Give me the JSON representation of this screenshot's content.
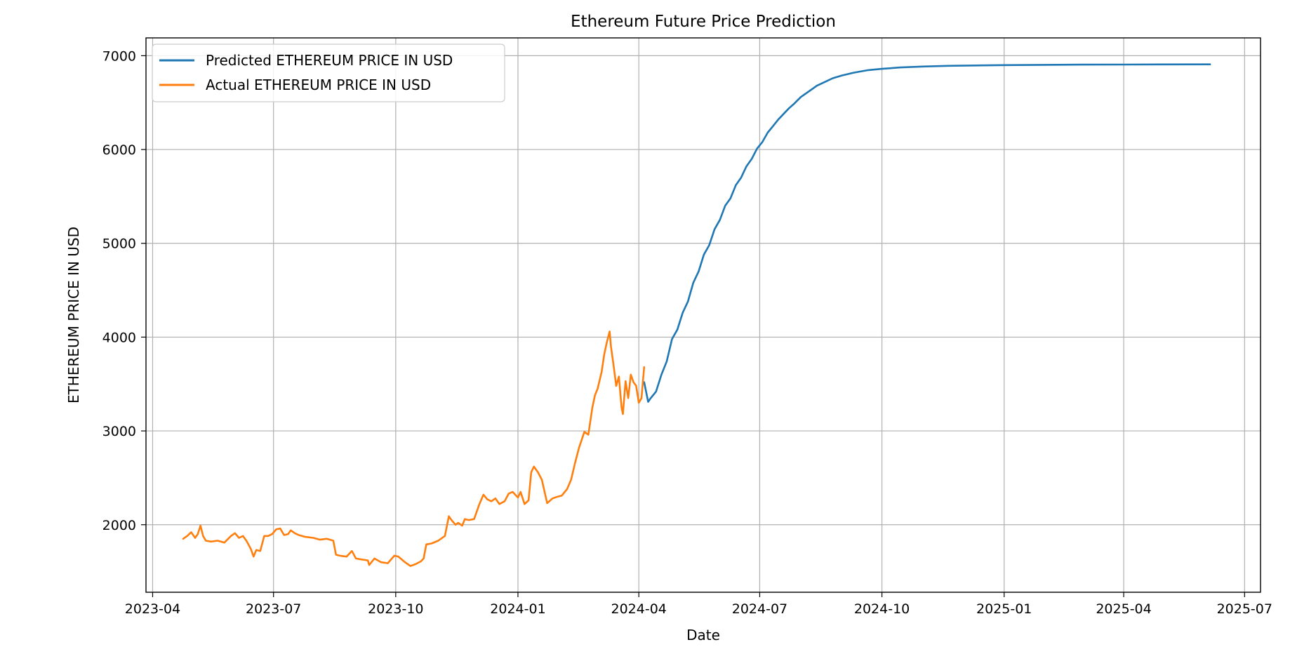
{
  "chart_data": {
    "type": "line",
    "title": "Ethereum Future Price Prediction",
    "xlabel": "Date",
    "ylabel": "ETHEREUM PRICE IN USD",
    "xlim": [
      "2023-03-27",
      "2025-07-13"
    ],
    "ylim": [
      1280,
      7190
    ],
    "grid": true,
    "legend_position": "upper-left",
    "x_ticks": [
      "2023-04",
      "2023-07",
      "2023-10",
      "2024-01",
      "2024-04",
      "2024-07",
      "2024-10",
      "2025-01",
      "2025-04",
      "2025-07"
    ],
    "y_ticks": [
      2000,
      3000,
      4000,
      5000,
      6000,
      7000
    ],
    "series": [
      {
        "name": "Predicted ETHEREUM PRICE IN USD",
        "color": "#1f77b4",
        "x": [
          "2024-04-05",
          "2024-04-08",
          "2024-04-10",
          "2024-04-14",
          "2024-04-18",
          "2024-04-22",
          "2024-04-26",
          "2024-04-30",
          "2024-05-04",
          "2024-05-08",
          "2024-05-12",
          "2024-05-16",
          "2024-05-20",
          "2024-05-24",
          "2024-05-28",
          "2024-06-01",
          "2024-06-05",
          "2024-06-09",
          "2024-06-13",
          "2024-06-17",
          "2024-06-21",
          "2024-06-25",
          "2024-06-29",
          "2024-07-03",
          "2024-07-07",
          "2024-07-11",
          "2024-07-15",
          "2024-07-19",
          "2024-07-23",
          "2024-07-27",
          "2024-08-01",
          "2024-08-07",
          "2024-08-13",
          "2024-08-19",
          "2024-08-25",
          "2024-09-01",
          "2024-09-10",
          "2024-09-20",
          "2024-10-01",
          "2024-10-15",
          "2024-11-01",
          "2024-11-20",
          "2024-12-10",
          "2025-01-01",
          "2025-02-01",
          "2025-03-01",
          "2025-04-01",
          "2025-05-01",
          "2025-06-05"
        ],
        "y": [
          3520,
          3310,
          3350,
          3420,
          3600,
          3740,
          3980,
          4080,
          4260,
          4380,
          4580,
          4700,
          4880,
          4980,
          5150,
          5250,
          5400,
          5480,
          5620,
          5700,
          5820,
          5900,
          6010,
          6080,
          6180,
          6250,
          6320,
          6380,
          6440,
          6490,
          6560,
          6620,
          6680,
          6720,
          6760,
          6790,
          6820,
          6845,
          6860,
          6875,
          6885,
          6892,
          6896,
          6900,
          6903,
          6905,
          6906,
          6907,
          6908
        ]
      },
      {
        "name": "Actual ETHEREUM PRICE IN USD",
        "color": "#ff7f0e",
        "x": [
          "2023-04-24",
          "2023-04-27",
          "2023-04-30",
          "2023-05-03",
          "2023-05-05",
          "2023-05-07",
          "2023-05-09",
          "2023-05-11",
          "2023-05-15",
          "2023-05-20",
          "2023-05-25",
          "2023-05-30",
          "2023-06-02",
          "2023-06-05",
          "2023-06-08",
          "2023-06-11",
          "2023-06-14",
          "2023-06-16",
          "2023-06-18",
          "2023-06-21",
          "2023-06-24",
          "2023-06-27",
          "2023-06-30",
          "2023-07-03",
          "2023-07-06",
          "2023-07-09",
          "2023-07-12",
          "2023-07-14",
          "2023-07-17",
          "2023-07-20",
          "2023-07-25",
          "2023-07-31",
          "2023-08-05",
          "2023-08-10",
          "2023-08-15",
          "2023-08-17",
          "2023-08-20",
          "2023-08-25",
          "2023-08-29",
          "2023-09-01",
          "2023-09-05",
          "2023-09-10",
          "2023-09-11",
          "2023-09-15",
          "2023-09-20",
          "2023-09-25",
          "2023-09-30",
          "2023-10-03",
          "2023-10-08",
          "2023-10-12",
          "2023-10-16",
          "2023-10-20",
          "2023-10-22",
          "2023-10-24",
          "2023-10-28",
          "2023-11-02",
          "2023-11-07",
          "2023-11-10",
          "2023-11-12",
          "2023-11-15",
          "2023-11-17",
          "2023-11-20",
          "2023-11-22",
          "2023-11-25",
          "2023-11-29",
          "2023-12-03",
          "2023-12-06",
          "2023-12-09",
          "2023-12-12",
          "2023-12-15",
          "2023-12-18",
          "2023-12-22",
          "2023-12-25",
          "2023-12-28",
          "2024-01-01",
          "2024-01-03",
          "2024-01-06",
          "2024-01-09",
          "2024-01-11",
          "2024-01-13",
          "2024-01-16",
          "2024-01-19",
          "2024-01-23",
          "2024-01-27",
          "2024-01-31",
          "2024-02-03",
          "2024-02-07",
          "2024-02-10",
          "2024-02-13",
          "2024-02-16",
          "2024-02-20",
          "2024-02-23",
          "2024-02-26",
          "2024-02-28",
          "2024-03-01",
          "2024-03-04",
          "2024-03-06",
          "2024-03-08",
          "2024-03-10",
          "2024-03-11",
          "2024-03-13",
          "2024-03-15",
          "2024-03-17",
          "2024-03-19",
          "2024-03-20",
          "2024-03-22",
          "2024-03-24",
          "2024-03-26",
          "2024-03-28",
          "2024-03-30",
          "2024-04-01",
          "2024-04-03",
          "2024-04-05"
        ],
        "y": [
          1850,
          1880,
          1920,
          1860,
          1900,
          1990,
          1880,
          1830,
          1820,
          1830,
          1810,
          1880,
          1910,
          1860,
          1880,
          1820,
          1740,
          1660,
          1730,
          1720,
          1880,
          1880,
          1900,
          1950,
          1960,
          1890,
          1900,
          1940,
          1910,
          1890,
          1870,
          1860,
          1840,
          1850,
          1830,
          1680,
          1670,
          1660,
          1720,
          1640,
          1630,
          1620,
          1570,
          1640,
          1600,
          1590,
          1670,
          1660,
          1600,
          1560,
          1580,
          1610,
          1640,
          1790,
          1800,
          1830,
          1880,
          2090,
          2050,
          2000,
          2020,
          1990,
          2060,
          2050,
          2060,
          2220,
          2320,
          2270,
          2250,
          2280,
          2220,
          2250,
          2330,
          2350,
          2290,
          2350,
          2220,
          2260,
          2560,
          2620,
          2560,
          2480,
          2230,
          2280,
          2300,
          2310,
          2380,
          2480,
          2660,
          2820,
          2990,
          2960,
          3250,
          3380,
          3450,
          3630,
          3820,
          3950,
          4060,
          3900,
          3700,
          3480,
          3580,
          3250,
          3180,
          3530,
          3350,
          3600,
          3520,
          3480,
          3300,
          3350,
          3680
        ]
      }
    ]
  }
}
